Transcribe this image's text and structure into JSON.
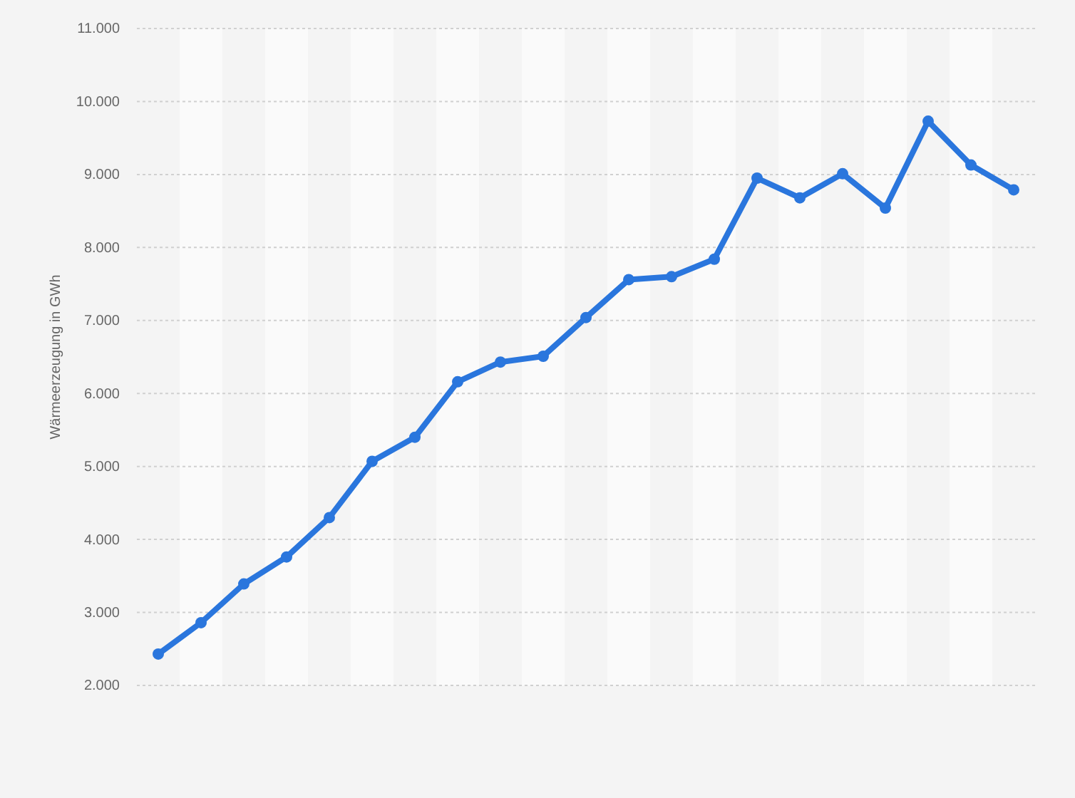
{
  "chart_data": {
    "type": "line",
    "ylabel": "Wärmeerzeugung in GWh",
    "categories": [
      null,
      null,
      null,
      null,
      null,
      null,
      null,
      null,
      null,
      null,
      null,
      null,
      null,
      null,
      null,
      null,
      null,
      null,
      null,
      null,
      null
    ],
    "series": [
      {
        "color": "#2a76dd",
        "values": [
          2430,
          2860,
          3390,
          3760,
          4300,
          5070,
          5400,
          6160,
          6430,
          6510,
          7040,
          7560,
          7600,
          7840,
          8950,
          8680,
          9010,
          8540,
          9730,
          9130,
          8790
        ]
      }
    ],
    "ylim": [
      2000,
      11000
    ],
    "yticks": [
      {
        "value": 2000,
        "label": "2.000"
      },
      {
        "value": 3000,
        "label": "3.000"
      },
      {
        "value": 4000,
        "label": "4.000"
      },
      {
        "value": 5000,
        "label": "5.000"
      },
      {
        "value": 6000,
        "label": "6.000"
      },
      {
        "value": 7000,
        "label": "7.000"
      },
      {
        "value": 8000,
        "label": "8.000"
      },
      {
        "value": 9000,
        "label": "9.000"
      },
      {
        "value": 10000,
        "label": "10.000"
      },
      {
        "value": 11000,
        "label": "11.000"
      }
    ],
    "grid": "y",
    "marker": "circle",
    "line_style": "solid"
  }
}
